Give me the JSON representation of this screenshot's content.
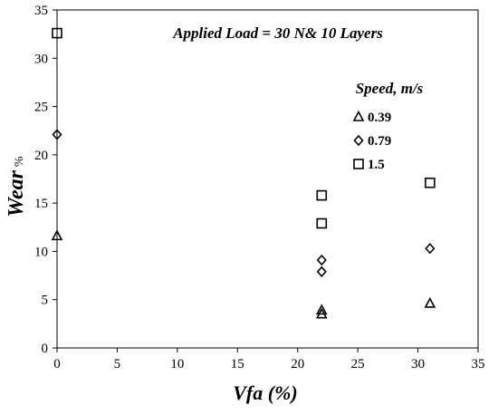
{
  "chart_data": {
    "type": "scatter",
    "title": "Applied Load = 30 N& 10 Layers",
    "xlabel": "Vfa (%)",
    "ylabel": "Wear",
    "ylabel_unit": "%",
    "xlim": [
      0,
      35
    ],
    "ylim": [
      0,
      35
    ],
    "xticks": [
      0,
      5,
      10,
      15,
      20,
      25,
      30,
      35
    ],
    "yticks": [
      0,
      5,
      10,
      15,
      20,
      25,
      30,
      35
    ],
    "grid": false,
    "legend": {
      "title": "Speed, m/s",
      "placement": "upper-right"
    },
    "series": [
      {
        "name": "0.39",
        "marker": "triangle",
        "points": [
          [
            0,
            11.6
          ],
          [
            22,
            3.9
          ],
          [
            22,
            3.5
          ],
          [
            31,
            4.6
          ]
        ]
      },
      {
        "name": "0.79",
        "marker": "diamond",
        "points": [
          [
            0,
            22.1
          ],
          [
            22,
            9.1
          ],
          [
            22,
            7.9
          ],
          [
            31,
            10.3
          ]
        ]
      },
      {
        "name": "1.5",
        "marker": "square",
        "points": [
          [
            0,
            32.6
          ],
          [
            22,
            15.8
          ],
          [
            22,
            12.9
          ],
          [
            31,
            17.1
          ]
        ]
      }
    ]
  }
}
